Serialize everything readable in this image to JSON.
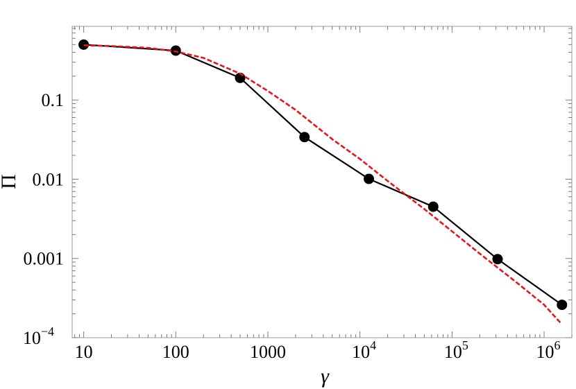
{
  "chart_data": {
    "type": "line",
    "xlabel": "γ",
    "ylabel": "Π",
    "xscale": "log",
    "yscale": "log",
    "xlim": [
      7.5,
      2000000
    ],
    "ylim": [
      0.0001,
      0.85
    ],
    "x_ticks": [
      {
        "value": 10,
        "label": "10"
      },
      {
        "value": 100,
        "label": "100"
      },
      {
        "value": 1000,
        "label": "1000"
      },
      {
        "value": 10000,
        "label": "10",
        "sup": "4"
      },
      {
        "value": 100000,
        "label": "10",
        "sup": "5"
      },
      {
        "value": 1000000,
        "label": "10",
        "sup": "6"
      }
    ],
    "y_ticks": [
      {
        "value": 0.0001,
        "label": "10",
        "sup": "−4"
      },
      {
        "value": 0.001,
        "label": "0.001"
      },
      {
        "value": 0.01,
        "label": "0.01"
      },
      {
        "value": 0.1,
        "label": "0.1"
      }
    ],
    "grid": false,
    "series": [
      {
        "style": "solid-markers",
        "color": "#000000",
        "x": [
          10,
          100,
          500,
          2500,
          12500,
          62500,
          312500,
          1562500
        ],
        "y": [
          0.5,
          0.42,
          0.19,
          0.034,
          0.0101,
          0.0045,
          0.00098,
          0.00026
        ]
      },
      {
        "style": "dashed",
        "color": "#e8141a",
        "x": [
          10,
          20,
          50,
          100,
          200,
          500,
          1000,
          2000,
          5000,
          10000,
          20000,
          50000,
          100000,
          200000,
          500000,
          1000000,
          1500000
        ],
        "y": [
          0.49,
          0.48,
          0.455,
          0.41,
          0.34,
          0.215,
          0.13,
          0.075,
          0.032,
          0.018,
          0.0095,
          0.0042,
          0.0022,
          0.00115,
          0.0005,
          0.00026,
          0.000155
        ]
      }
    ]
  }
}
